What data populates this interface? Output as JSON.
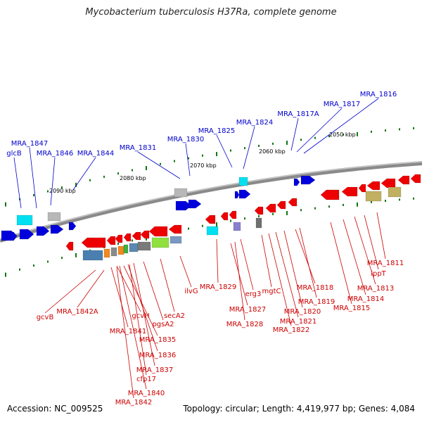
{
  "title": "Mycobacterium tuberculosis H37Ra, complete genome",
  "footer": {
    "accession": "Accession: NC_009525",
    "stats": "Topology: circular; Length: 4,419,977 bp; Genes: 4,084"
  },
  "colors": {
    "forward_gene": "#0000dd",
    "reverse_gene": "#ee0000",
    "backbone": "#888888",
    "tick": "#117711",
    "forward_label": "#0000cc",
    "reverse_label": "#cc0000"
  },
  "axis_ticks": [
    "2050 kbp",
    "2060 kbp",
    "2070 kbp",
    "2080 kbp",
    "2090 kbp"
  ],
  "forward_labels": [
    "MRA_1816",
    "MRA_1817",
    "MRA_1817A",
    "MRA_1824",
    "MRA_1825",
    "MRA_1830",
    "MRA_1831",
    "MRA_1844",
    "MRA_1846",
    "MRA_1847",
    "glcB"
  ],
  "reverse_labels": [
    "gcvB",
    "MRA_1842A",
    "MRA_1841",
    "gcvH",
    "pgsA2",
    "secA2",
    "ilvG",
    "MRA_1835",
    "MRA_1836",
    "MRA_1837",
    "cfp17",
    "MRA_1840",
    "MRA_1842",
    "MRA_1829",
    "MRA_1827",
    "MRA_1828",
    "erg3",
    "mgtC",
    "MRA_1818",
    "MRA_1819",
    "MRA_1820",
    "MRA_1821",
    "MRA_1822",
    "MRA_1815",
    "MRA_1814",
    "MRA_1813",
    "lppT",
    "MRA_1811"
  ]
}
